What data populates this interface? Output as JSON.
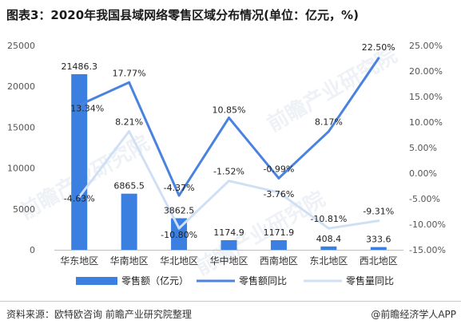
{
  "title": "图表3：2020年我国县域网络零售区域分布情况(单位：亿元，%)",
  "source": "资料来源：欧特欧咨询 前瞻产业研究院整理",
  "brand": "@前瞻经济学人APP",
  "watermark": "前瞻产业研究院",
  "colors": {
    "bar": "#3b7fe0",
    "line_sales": "#4a82e0",
    "line_volume": "#cfe0f5"
  },
  "chart_data": {
    "type": "bar",
    "categories": [
      "华东地区",
      "华南地区",
      "华北地区",
      "华中地区",
      "西南地区",
      "东北地区",
      "西北地区"
    ],
    "series": [
      {
        "name": "零售额（亿元）",
        "type": "bar",
        "axis": "left",
        "values": [
          21486.3,
          6865.5,
          3862.5,
          1174.9,
          1171.9,
          408.4,
          333.6
        ],
        "labels": [
          "21486.3",
          "6865.5",
          "3862.5",
          "1174.9",
          "1171.9",
          "408.4",
          "333.6"
        ]
      },
      {
        "name": "零售额同比",
        "type": "line",
        "axis": "right",
        "values": [
          13.34,
          17.77,
          -4.37,
          10.85,
          -0.99,
          8.17,
          22.5
        ],
        "labels": [
          "13.34%",
          "17.77%",
          "-4.37%",
          "10.85%",
          "-0.99%",
          "8.17%",
          "22.50%"
        ]
      },
      {
        "name": "零售量同比",
        "type": "line",
        "axis": "right",
        "values": [
          -4.63,
          8.21,
          -10.8,
          -1.52,
          -3.76,
          -10.81,
          -9.31
        ],
        "labels": [
          "-4.63%",
          "8.21%",
          "-10.80%",
          "-1.52%",
          "-3.76%",
          "-10.81%",
          "-9.31%"
        ]
      }
    ],
    "yleft": {
      "min": 0,
      "max": 25000,
      "ticks": [
        "0",
        "5000",
        "10000",
        "15000",
        "20000",
        "25000"
      ]
    },
    "yright": {
      "min": -15,
      "max": 25,
      "ticks": [
        "-15.00%",
        "-10.00%",
        "-5.00%",
        "0.00%",
        "5.00%",
        "10.00%",
        "15.00%",
        "20.00%",
        "25.00%"
      ]
    },
    "legend_position": "bottom",
    "grid": false
  }
}
